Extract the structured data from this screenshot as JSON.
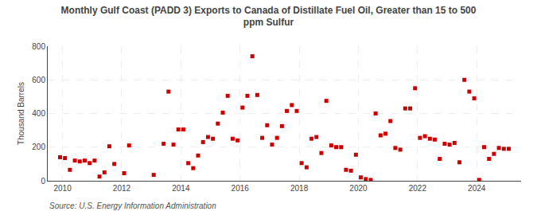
{
  "chart_data": {
    "type": "scatter",
    "title": "Monthly Gulf Coast (PADD 3) Exports to Canada of Distillate Fuel Oil, Greater than 15 to 500\nppm Sulfur",
    "ylabel": "Thousand Barrels",
    "annotations": [
      "Source: U.S. Energy Information Administration"
    ],
    "color": "#cc0000",
    "marker": "square",
    "grid": true,
    "xlim": [
      2009.5,
      2025.5
    ],
    "xticks": [
      2010,
      2012,
      2014,
      2016,
      2018,
      2020,
      2022,
      2024
    ],
    "ylim": [
      0,
      800
    ],
    "yticks": [
      0,
      200,
      400,
      600,
      800
    ],
    "x": [
      2009.917,
      2010.083,
      2010.25,
      2010.417,
      2010.583,
      2010.75,
      2010.917,
      2011.083,
      2011.25,
      2011.417,
      2011.583,
      2011.75,
      2012.083,
      2012.25,
      2013.083,
      2013.417,
      2013.583,
      2013.75,
      2013.917,
      2014.083,
      2014.25,
      2014.417,
      2014.583,
      2014.75,
      2014.917,
      2015.083,
      2015.25,
      2015.417,
      2015.583,
      2015.75,
      2015.917,
      2016.083,
      2016.25,
      2016.417,
      2016.583,
      2016.75,
      2016.917,
      2017.083,
      2017.25,
      2017.417,
      2017.583,
      2017.75,
      2017.917,
      2018.083,
      2018.25,
      2018.417,
      2018.583,
      2018.75,
      2018.917,
      2019.083,
      2019.25,
      2019.417,
      2019.583,
      2019.75,
      2019.917,
      2020.083,
      2020.25,
      2020.417,
      2020.583,
      2020.75,
      2020.917,
      2021.083,
      2021.25,
      2021.417,
      2021.583,
      2021.75,
      2021.917,
      2022.083,
      2022.25,
      2022.417,
      2022.583,
      2022.75,
      2022.917,
      2023.083,
      2023.25,
      2023.417,
      2023.583,
      2023.75,
      2023.917,
      2024.083,
      2024.25,
      2024.417,
      2024.583,
      2024.75,
      2024.917,
      2025.083
    ],
    "values": [
      140,
      135,
      65,
      120,
      115,
      120,
      105,
      120,
      25,
      50,
      205,
      100,
      45,
      210,
      35,
      220,
      530,
      215,
      305,
      305,
      105,
      75,
      150,
      230,
      260,
      250,
      340,
      405,
      505,
      250,
      240,
      435,
      505,
      740,
      510,
      255,
      330,
      215,
      255,
      325,
      415,
      450,
      415,
      105,
      80,
      250,
      260,
      165,
      475,
      210,
      200,
      200,
      65,
      60,
      155,
      20,
      10,
      5,
      400,
      270,
      280,
      355,
      195,
      185,
      430,
      430,
      550,
      255,
      265,
      250,
      245,
      130,
      220,
      215,
      225,
      110,
      600,
      530,
      490,
      5,
      200,
      130,
      160,
      195,
      190,
      190
    ]
  }
}
